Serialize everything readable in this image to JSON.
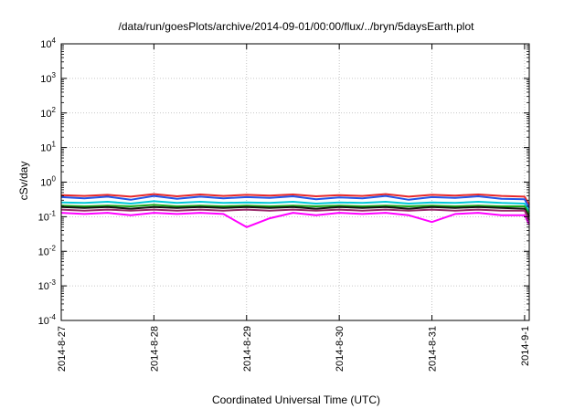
{
  "chart_data": {
    "type": "line",
    "title": "/data/run/goesPlots/archive/2014-09-01/00:00/flux/../bryn/5daysEarth.plot",
    "xlabel": "Coordinated Universal Time (UTC)",
    "ylabel": "cSv/day",
    "yscale": "log",
    "ylim": [
      0.0001,
      10000
    ],
    "xlim": [
      0,
      5.05
    ],
    "x_ticks": [
      {
        "value": 0,
        "label": "2014-8-27"
      },
      {
        "value": 1,
        "label": "2014-8-28"
      },
      {
        "value": 2,
        "label": "2014-8-29"
      },
      {
        "value": 3,
        "label": "2014-8-30"
      },
      {
        "value": 4,
        "label": "2014-8-31"
      },
      {
        "value": 5,
        "label": "2014-9-1"
      }
    ],
    "y_ticks": [
      {
        "value": 0.0001,
        "base": "10",
        "exp": "-4"
      },
      {
        "value": 0.001,
        "base": "10",
        "exp": "-3"
      },
      {
        "value": 0.01,
        "base": "10",
        "exp": "-2"
      },
      {
        "value": 0.1,
        "base": "10",
        "exp": "-1"
      },
      {
        "value": 1,
        "base": "10",
        "exp": "0"
      },
      {
        "value": 10,
        "base": "10",
        "exp": "1"
      },
      {
        "value": 100,
        "base": "10",
        "exp": "2"
      },
      {
        "value": 1000,
        "base": "10",
        "exp": "3"
      },
      {
        "value": 10000,
        "base": "10",
        "exp": "4"
      }
    ],
    "grid": true,
    "legend": "none",
    "series": [
      {
        "color": "#e8282b",
        "x": [
          0,
          0.25,
          0.5,
          0.75,
          1.0,
          1.25,
          1.5,
          1.75,
          2.0,
          2.25,
          2.5,
          2.75,
          3.0,
          3.25,
          3.5,
          3.75,
          4.0,
          4.25,
          4.5,
          4.75,
          5.0,
          5.05
        ],
        "y": [
          0.42,
          0.4,
          0.43,
          0.38,
          0.45,
          0.39,
          0.44,
          0.4,
          0.43,
          0.41,
          0.44,
          0.39,
          0.42,
          0.4,
          0.45,
          0.38,
          0.43,
          0.41,
          0.44,
          0.4,
          0.38,
          0.22
        ]
      },
      {
        "color": "#2255e8",
        "x": [
          0,
          0.25,
          0.5,
          0.75,
          1.0,
          1.25,
          1.5,
          1.75,
          2.0,
          2.25,
          2.5,
          2.75,
          3.0,
          3.25,
          3.5,
          3.75,
          4.0,
          4.25,
          4.5,
          4.75,
          5.0,
          5.05
        ],
        "y": [
          0.37,
          0.34,
          0.38,
          0.31,
          0.4,
          0.33,
          0.38,
          0.34,
          0.37,
          0.35,
          0.39,
          0.32,
          0.36,
          0.34,
          0.4,
          0.31,
          0.37,
          0.35,
          0.39,
          0.33,
          0.32,
          0.18
        ]
      },
      {
        "color": "#00c8d8",
        "x": [
          0,
          0.25,
          0.5,
          0.75,
          1.0,
          1.25,
          1.5,
          1.75,
          2.0,
          2.25,
          2.5,
          2.75,
          3.0,
          3.25,
          3.5,
          3.75,
          4.0,
          4.25,
          4.5,
          4.75,
          5.0,
          5.05
        ],
        "y": [
          0.26,
          0.25,
          0.27,
          0.24,
          0.28,
          0.25,
          0.27,
          0.25,
          0.26,
          0.25,
          0.27,
          0.24,
          0.26,
          0.25,
          0.27,
          0.24,
          0.26,
          0.25,
          0.27,
          0.25,
          0.24,
          0.14
        ]
      },
      {
        "color": "#19a519",
        "x": [
          0,
          0.25,
          0.5,
          0.75,
          1.0,
          1.25,
          1.5,
          1.75,
          2.0,
          2.25,
          2.5,
          2.75,
          3.0,
          3.25,
          3.5,
          3.75,
          4.0,
          4.25,
          4.5,
          4.75,
          5.0,
          5.05
        ],
        "y": [
          0.21,
          0.2,
          0.21,
          0.2,
          0.22,
          0.2,
          0.21,
          0.2,
          0.21,
          0.2,
          0.21,
          0.2,
          0.21,
          0.2,
          0.21,
          0.2,
          0.21,
          0.2,
          0.21,
          0.2,
          0.2,
          0.12
        ]
      },
      {
        "color": "#111111",
        "x": [
          0,
          0.25,
          0.5,
          0.75,
          1.0,
          1.25,
          1.5,
          1.75,
          2.0,
          2.25,
          2.5,
          2.75,
          3.0,
          3.25,
          3.5,
          3.75,
          4.0,
          4.25,
          4.5,
          4.75,
          5.0,
          5.05
        ],
        "y": [
          0.19,
          0.18,
          0.19,
          0.17,
          0.19,
          0.18,
          0.19,
          0.18,
          0.19,
          0.18,
          0.19,
          0.17,
          0.19,
          0.18,
          0.19,
          0.17,
          0.19,
          0.18,
          0.19,
          0.18,
          0.17,
          0.1
        ]
      },
      {
        "color": "#9a2a6a",
        "x": [
          0,
          0.25,
          0.5,
          0.75,
          1.0,
          1.25,
          1.5,
          1.75,
          2.0,
          2.25,
          2.5,
          2.75,
          3.0,
          3.25,
          3.5,
          3.75,
          4.0,
          4.25,
          4.5,
          4.75,
          5.0,
          5.05
        ],
        "y": [
          0.16,
          0.15,
          0.16,
          0.15,
          0.16,
          0.15,
          0.16,
          0.15,
          0.16,
          0.15,
          0.16,
          0.15,
          0.16,
          0.15,
          0.16,
          0.15,
          0.16,
          0.15,
          0.16,
          0.15,
          0.15,
          0.08
        ]
      },
      {
        "color": "#ff00ff",
        "x": [
          0,
          0.25,
          0.5,
          0.75,
          1.0,
          1.25,
          1.5,
          1.75,
          2.0,
          2.25,
          2.5,
          2.75,
          3.0,
          3.25,
          3.5,
          3.75,
          4.0,
          4.25,
          4.5,
          4.75,
          5.0,
          5.05
        ],
        "y": [
          0.13,
          0.12,
          0.13,
          0.11,
          0.13,
          0.12,
          0.13,
          0.12,
          0.05,
          0.09,
          0.13,
          0.11,
          0.13,
          0.12,
          0.13,
          0.11,
          0.07,
          0.12,
          0.13,
          0.11,
          0.11,
          0.06
        ]
      }
    ]
  }
}
